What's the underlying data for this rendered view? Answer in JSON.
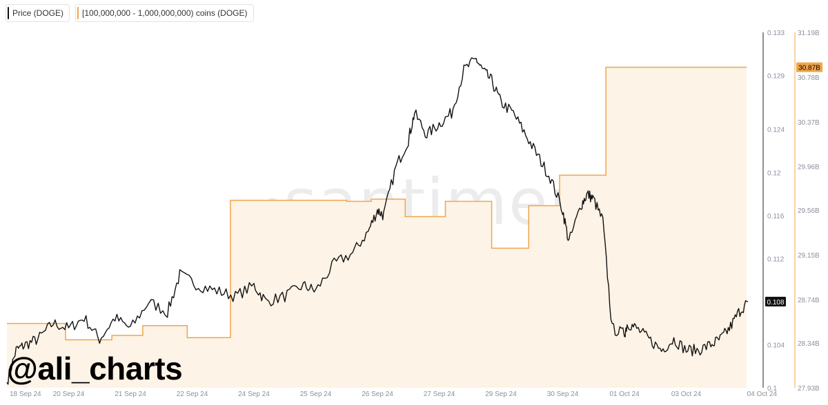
{
  "legend": {
    "price_label": "Price (DOGE)",
    "supply_label": "[100,000,000 - 1,000,000,000) coins (DOGE)"
  },
  "watermark": "·santiment·",
  "handle": "@ali_charts",
  "colors": {
    "price": "#111111",
    "supply": "#f0a54a",
    "supply_fill": "#fdf3e6",
    "axis_text": "#8a8f9a"
  },
  "chart_data": {
    "type": "line",
    "x_tick_labels": [
      "18 Sep 24",
      "20 Sep 24",
      "21 Sep 24",
      "22 Sep 24",
      "24 Sep 24",
      "25 Sep 24",
      "26 Sep 24",
      "27 Sep 24",
      "29 Sep 24",
      "30 Sep 24",
      "01 Oct 24",
      "03 Oct 24",
      "04 Oct 24"
    ],
    "left_axis": {
      "ticks": [
        "0.133",
        "0.129",
        "0.124",
        "0.12",
        "0.116",
        "0.112",
        "0.108",
        "0.104",
        "0.1"
      ],
      "ylim": [
        0.1,
        0.133
      ]
    },
    "right_axis": {
      "ticks": [
        "31.19B",
        "30.78B",
        "30.37B",
        "29.96B",
        "29.56B",
        "29.15B",
        "28.74B",
        "28.34B",
        "27.93B"
      ],
      "ylim": [
        27.93,
        31.19
      ]
    },
    "current_price_label": "0.108",
    "current_supply_label": "30.87B",
    "series": [
      {
        "name": "Price (DOGE)",
        "axis": "left",
        "x": [
          0,
          0.15,
          0.3,
          0.5,
          0.75,
          1.0,
          1.25,
          1.5,
          1.75,
          2.0,
          2.3,
          2.6,
          2.8,
          3.1,
          3.4,
          3.7,
          4.0,
          4.2,
          4.5,
          4.8,
          5.0,
          5.3,
          5.6,
          5.85,
          6.0,
          6.1,
          6.3,
          6.5,
          6.6,
          6.8,
          7.0,
          7.2,
          7.4,
          7.6,
          7.7,
          7.85,
          8.0,
          8.2,
          8.4,
          8.6,
          8.8,
          9.0,
          9.1,
          9.3,
          9.4,
          9.5,
          9.65,
          9.8,
          10.0,
          10.05,
          10.2,
          10.4,
          10.6,
          10.8,
          11.0,
          11.2,
          11.4,
          11.55,
          11.7,
          11.85,
          12.0
        ],
        "y": [
          0.1005,
          0.1035,
          0.104,
          0.1045,
          0.106,
          0.1055,
          0.1065,
          0.1045,
          0.1065,
          0.1055,
          0.108,
          0.107,
          0.1105,
          0.1095,
          0.109,
          0.1085,
          0.1095,
          0.108,
          0.1085,
          0.1095,
          0.109,
          0.1115,
          0.1125,
          0.1145,
          0.1165,
          0.116,
          0.1205,
          0.123,
          0.1255,
          0.1235,
          0.1245,
          0.1255,
          0.1295,
          0.1305,
          0.1295,
          0.1285,
          0.1265,
          0.1255,
          0.1235,
          0.1215,
          0.1195,
          0.1165,
          0.1135,
          0.117,
          0.118,
          0.1175,
          0.1155,
          0.1055,
          0.105,
          0.106,
          0.1055,
          0.1045,
          0.1035,
          0.1045,
          0.1035,
          0.1035,
          0.104,
          0.1045,
          0.1055,
          0.107,
          0.108
        ]
      },
      {
        "name": "[100,000,000 - 1,000,000,000) coins (DOGE)",
        "axis": "right",
        "step": true,
        "x": [
          0,
          0.95,
          1.7,
          2.2,
          2.92,
          3.62,
          5.5,
          5.9,
          6.45,
          7.1,
          7.85,
          8.45,
          8.95,
          9.7,
          10.9,
          11.98
        ],
        "y": [
          28.52,
          28.37,
          28.41,
          28.5,
          28.39,
          29.65,
          29.64,
          29.66,
          29.5,
          29.64,
          29.21,
          29.6,
          29.88,
          30.87,
          30.87,
          30.87
        ]
      }
    ]
  }
}
